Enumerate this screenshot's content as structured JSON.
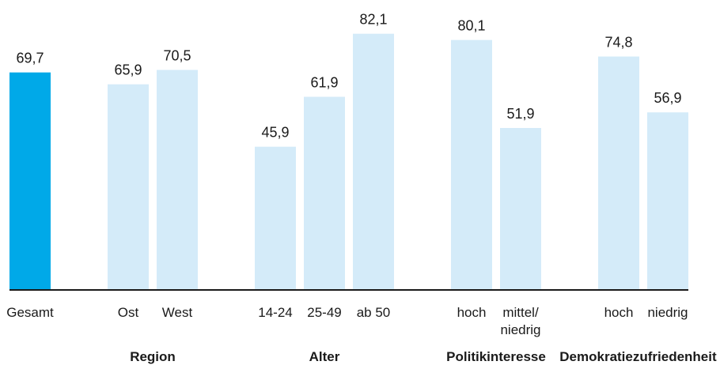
{
  "chart_data": {
    "type": "bar",
    "title": "",
    "xlabel": "",
    "ylabel": "",
    "ylim": [
      0,
      85
    ],
    "grid": false,
    "legend": "none",
    "colors": {
      "highlight": "#00a9e8",
      "default": "#d4ebf9",
      "baseline": "#1a1a1a",
      "text": "#1a1a1a"
    },
    "bars": [
      {
        "label": "Gesamt",
        "value": 69.7,
        "display": "69,7",
        "group": 0,
        "highlight": true
      },
      {
        "label": "Ost",
        "value": 65.9,
        "display": "65,9",
        "group": 1,
        "highlight": false
      },
      {
        "label": "West",
        "value": 70.5,
        "display": "70,5",
        "group": 1,
        "highlight": false
      },
      {
        "label": "14-24",
        "value": 45.9,
        "display": "45,9",
        "group": 2,
        "highlight": false
      },
      {
        "label": "25-49",
        "value": 61.9,
        "display": "61,9",
        "group": 2,
        "highlight": false
      },
      {
        "label": "ab 50",
        "value": 82.1,
        "display": "82,1",
        "group": 2,
        "highlight": false
      },
      {
        "label": "hoch",
        "value": 80.1,
        "display": "80,1",
        "group": 3,
        "highlight": false
      },
      {
        "label": "mittel/ niedrig",
        "value": 51.9,
        "display": "51,9",
        "group": 3,
        "highlight": false
      },
      {
        "label": "hoch",
        "value": 74.8,
        "display": "74,8",
        "group": 4,
        "highlight": false
      },
      {
        "label": "niedrig",
        "value": 56.9,
        "display": "56,9",
        "group": 4,
        "highlight": false
      }
    ],
    "groups": [
      {
        "label": ""
      },
      {
        "label": "Region"
      },
      {
        "label": "Alter"
      },
      {
        "label": "Politikinteresse"
      },
      {
        "label": "Demokratiezufriedenheit"
      }
    ]
  }
}
